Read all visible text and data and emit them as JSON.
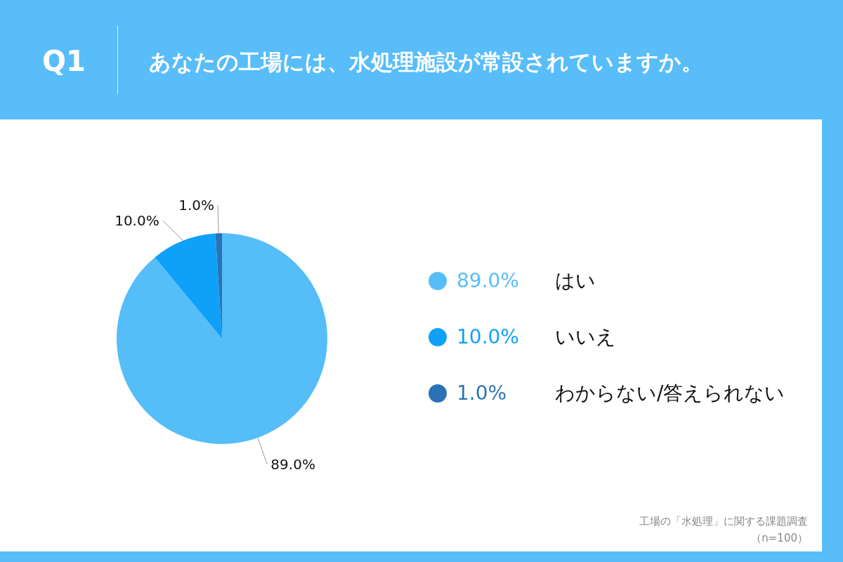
{
  "chart_data": {
    "type": "pie",
    "title": "Q1",
    "subtitle": "あなたの工場には、水処理施設が常設されていますか。",
    "categories": [
      "はい",
      "いいえ",
      "わからない/答えられない"
    ],
    "values": [
      89.0,
      10.0,
      1.0
    ],
    "value_labels": [
      "89.0%",
      "10.0%",
      "1.0%"
    ],
    "colors": [
      "#55bdf8",
      "#0ea1f7",
      "#2a72b5"
    ],
    "legend": "right",
    "annotations": [
      "工場の「水処理」に関する課題調査",
      "（n=100）"
    ]
  }
}
